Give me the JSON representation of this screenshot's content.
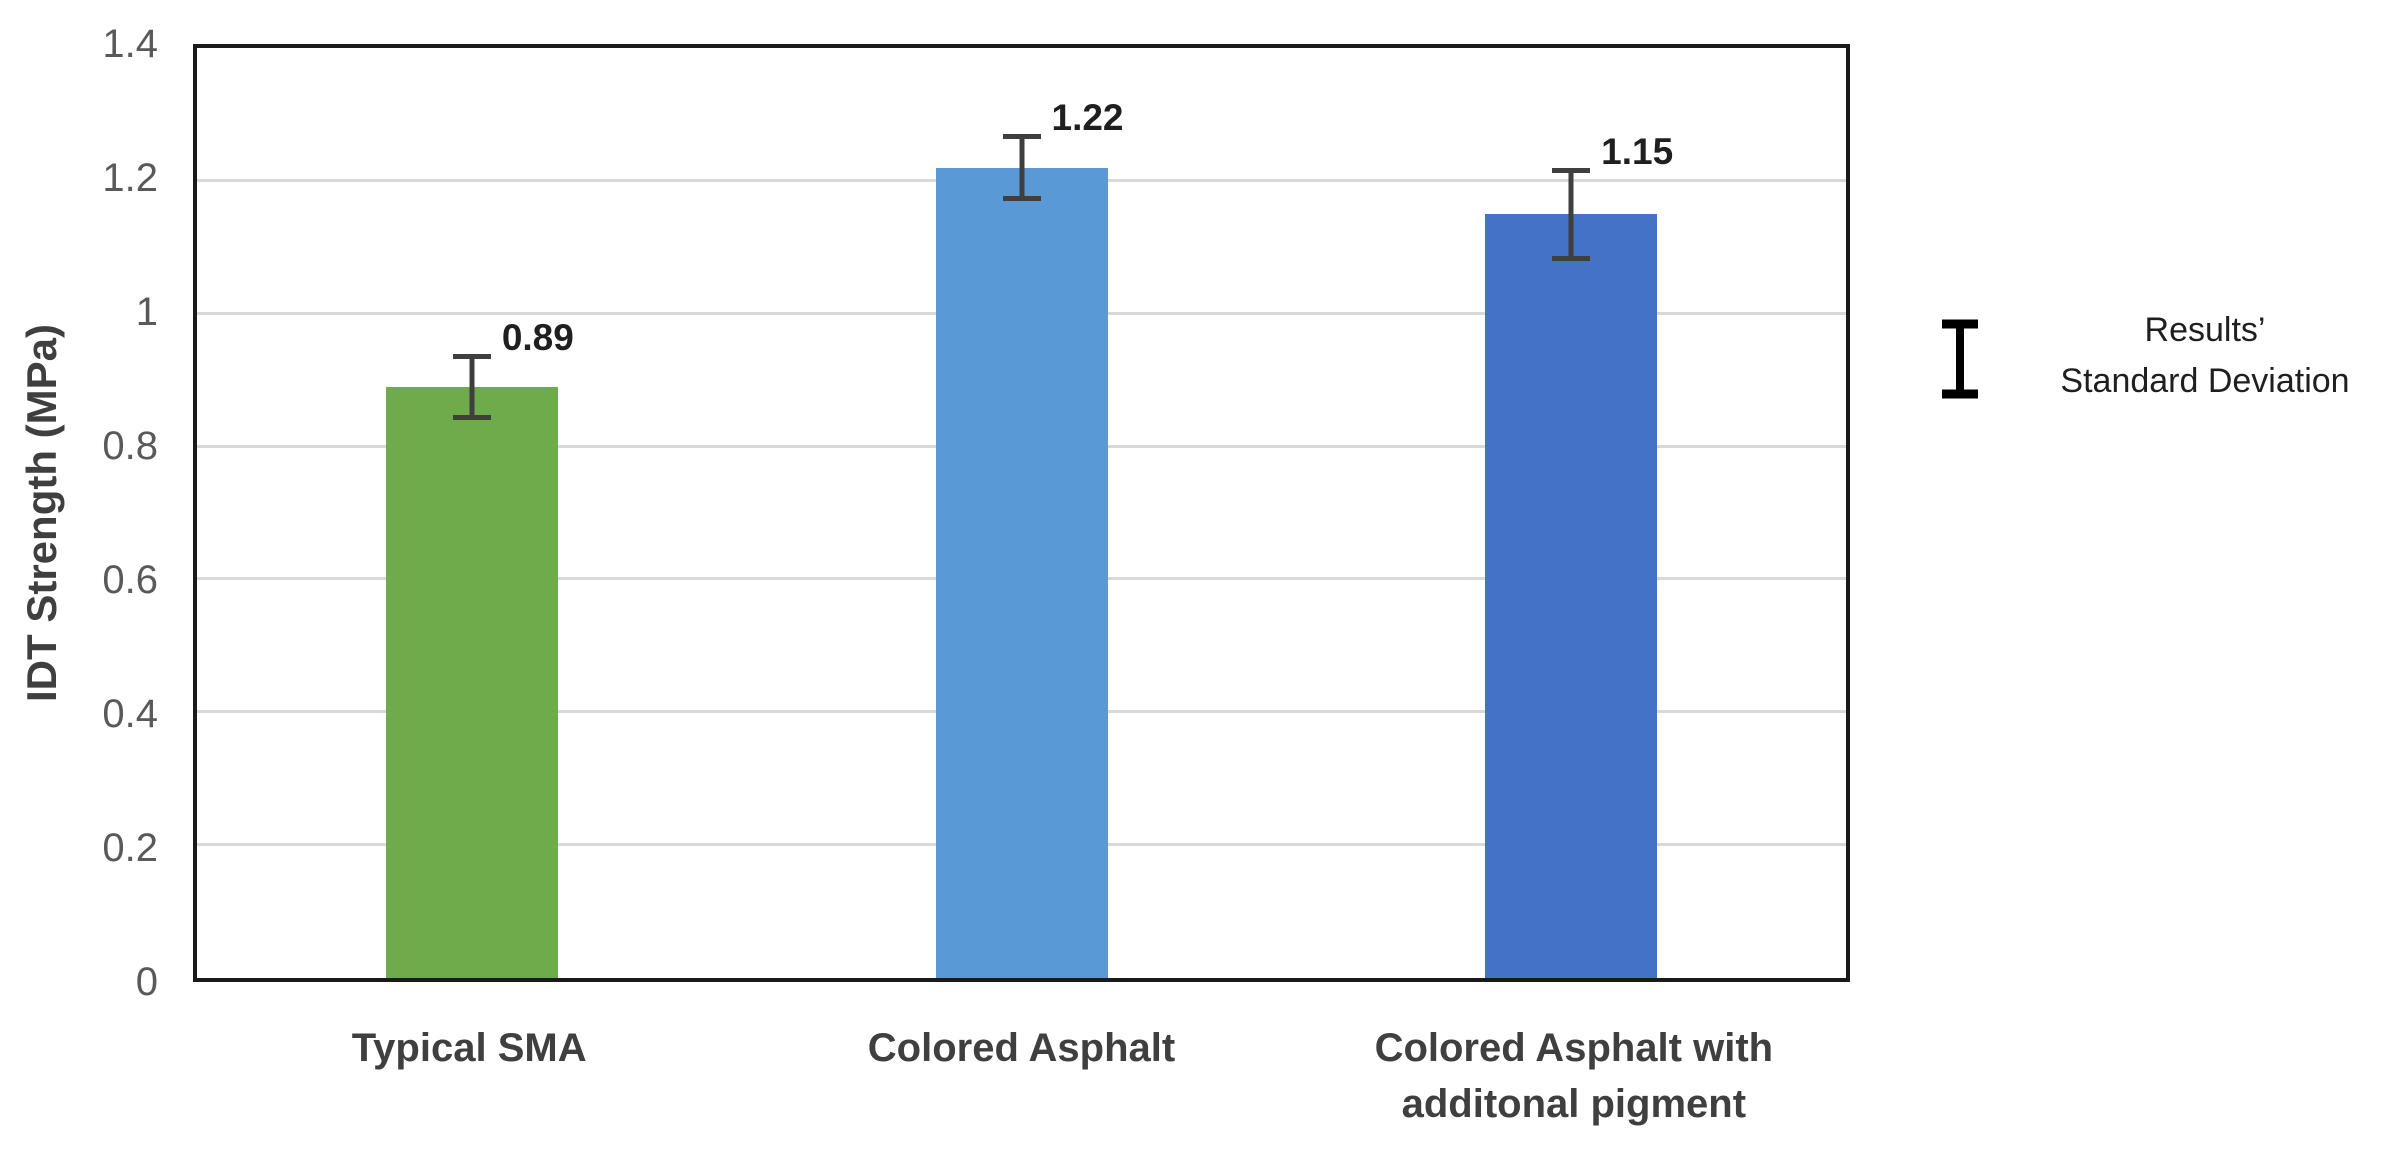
{
  "chart_data": {
    "type": "bar",
    "title": "",
    "xlabel": "",
    "ylabel": "IDT Strength (MPa)",
    "ylim": [
      0,
      1.4
    ],
    "ytick_step": 0.2,
    "yticks": [
      "0",
      "0.2",
      "0.4",
      "0.6",
      "0.8",
      "1",
      "1.2",
      "1.4"
    ],
    "grid": true,
    "categories": [
      "Typical SMA",
      "Colored Asphalt",
      "Colored Asphalt with additonal pigment"
    ],
    "values": [
      0.89,
      1.22,
      1.15
    ],
    "errors": [
      0.05,
      0.05,
      0.07
    ],
    "data_labels": [
      "0.89",
      "1.22",
      "1.15"
    ],
    "bar_colors": [
      "#6EAC4B",
      "#5899D6",
      "#4472C4"
    ],
    "error_bar_color": "#3F3F3F",
    "legend": {
      "position": "right",
      "icon": "error-bar-icon",
      "lines": [
        "Results’",
        "Standard Deviation"
      ]
    }
  }
}
